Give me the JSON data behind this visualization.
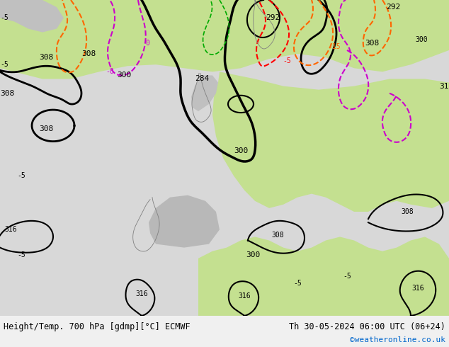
{
  "title_left": "Height/Temp. 700 hPa [gdmp][°C] ECMWF",
  "title_right": "Th 30-05-2024 06:00 UTC (06+24)",
  "credit": "©weatheronline.co.uk",
  "fig_width": 6.34,
  "fig_height": 4.9,
  "bg_color_ocean": "#e8e8e8",
  "bg_color_land_green": "#c8e6a0",
  "bg_color_land_gray": "#c8c8c8",
  "contour_height_color": "#000000",
  "contour_temp_pos_color": "#ff6600",
  "contour_temp_neg_color": "#ff0000",
  "contour_temp_zero_color": "#cc00cc",
  "label_color_bottom": "#000000",
  "credit_color": "#0066cc",
  "bottom_bar_color": "#f0f0f0"
}
